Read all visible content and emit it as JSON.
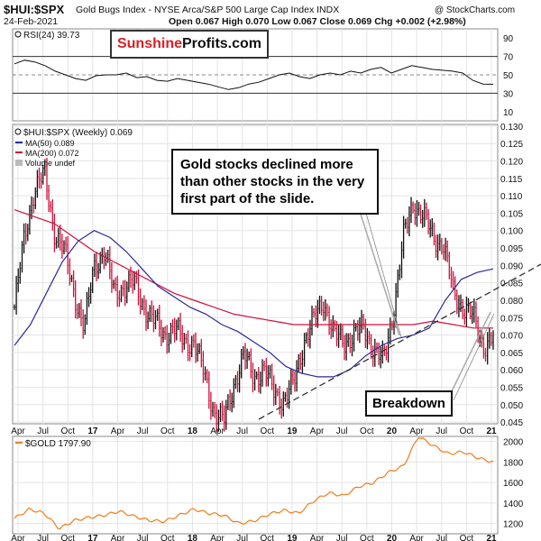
{
  "header": {
    "symbol": "$HUI:$SPX",
    "title": "Gold Bugs Index - NYSE Arca/S&P 500 Large Cap Index INDX",
    "watermark": "@ StockCharts.com",
    "date": "24-Feb-2021",
    "quote": "Open 0.067  High 0.070  Low 0.067  Close 0.069  Chg +0.002 (+2.98%)"
  },
  "logo": {
    "part1": "Sunshine",
    "part2": "Profits.com"
  },
  "annotations": {
    "main": "Gold stocks declined more than other stocks in the very first part of the slide.",
    "breakdown": "Breakdown"
  },
  "legends": {
    "rsi": "RSI(24) 39.73",
    "main": "$HUI:$SPX (Weekly) 0.069",
    "ma50": "MA(50) 0.089",
    "ma200": "MA(200) 0.072",
    "volume": "Volume undef",
    "gold": "$GOLD 1797.90"
  },
  "colors": {
    "up_bar": "#111111",
    "down_bar": "#d0103a",
    "ma50": "#2b2b9a",
    "ma200": "#d0103a",
    "gold": "#f07d1a",
    "trendline": "#333333",
    "callout": "#aaaaaa",
    "grid": "#e4e4e4"
  },
  "chart_data": [
    {
      "type": "line",
      "title": "RSI(24)",
      "x_ticks": [
        "Apr",
        "Jul",
        "Oct",
        "17",
        "Apr",
        "Jul",
        "Oct",
        "18",
        "Apr",
        "Jul",
        "Oct",
        "19",
        "Apr",
        "Jul",
        "Oct",
        "20",
        "Apr",
        "Jul",
        "Oct",
        "21"
      ],
      "ylim": [
        0,
        100
      ],
      "y_ticks": [
        10,
        30,
        50,
        70,
        90
      ],
      "reference_lines": [
        30,
        50,
        70
      ],
      "series": [
        {
          "name": "RSI(24)",
          "values": [
            62,
            66,
            64,
            60,
            54,
            50,
            46,
            44,
            49,
            50,
            50,
            52,
            47,
            48,
            44,
            43,
            46,
            44,
            42,
            40,
            37,
            34,
            36,
            40,
            42,
            46,
            50,
            52,
            48,
            46,
            50,
            52,
            50,
            54,
            52,
            56,
            58,
            52,
            56,
            60,
            58,
            56,
            55,
            54,
            52,
            44,
            40,
            39.73
          ]
        }
      ]
    },
    {
      "type": "line",
      "title": "$HUI:$SPX (Weekly)",
      "x_ticks": [
        "Apr",
        "Jul",
        "Oct",
        "17",
        "Apr",
        "Jul",
        "Oct",
        "18",
        "Apr",
        "Jul",
        "Oct",
        "19",
        "Apr",
        "Jul",
        "Oct",
        "20",
        "Apr",
        "Jul",
        "Oct",
        "21"
      ],
      "ylim": [
        0.0445,
        0.1305
      ],
      "y_ticks": [
        0.045,
        0.05,
        0.055,
        0.06,
        0.065,
        0.07,
        0.075,
        0.08,
        0.085,
        0.09,
        0.095,
        0.1,
        0.105,
        0.11,
        0.115,
        0.12,
        0.125,
        0.13
      ],
      "series": [
        {
          "name": "$HUI:$SPX",
          "values": [
            0.078,
            0.098,
            0.112,
            0.116,
            0.1,
            0.094,
            0.082,
            0.072,
            0.09,
            0.094,
            0.082,
            0.084,
            0.085,
            0.078,
            0.074,
            0.07,
            0.072,
            0.068,
            0.068,
            0.059,
            0.048,
            0.045,
            0.056,
            0.064,
            0.058,
            0.06,
            0.054,
            0.051,
            0.056,
            0.068,
            0.074,
            0.08,
            0.07,
            0.068,
            0.07,
            0.072,
            0.066,
            0.062,
            0.077,
            0.098,
            0.108,
            0.104,
            0.098,
            0.096,
            0.082,
            0.078,
            0.075,
            0.067,
            0.069
          ]
        },
        {
          "name": "MA(50)",
          "values": [
            0.067,
            0.073,
            0.082,
            0.091,
            0.097,
            0.1,
            0.098,
            0.094,
            0.089,
            0.084,
            0.081,
            0.078,
            0.076,
            0.073,
            0.071,
            0.068,
            0.065,
            0.061,
            0.059,
            0.058,
            0.058,
            0.06,
            0.064,
            0.067,
            0.069,
            0.07,
            0.072,
            0.08,
            0.086,
            0.088,
            0.089
          ]
        },
        {
          "name": "MA(200)",
          "values": [
            0.106,
            0.104,
            0.102,
            0.098,
            0.094,
            0.091,
            0.088,
            0.085,
            0.082,
            0.08,
            0.078,
            0.076,
            0.075,
            0.074,
            0.073,
            0.073,
            0.073,
            0.073,
            0.073,
            0.073,
            0.073,
            0.074,
            0.073,
            0.072,
            0.072
          ]
        }
      ],
      "annotations": [
        "Gold stocks declined more than other stocks in the very first part of the slide.",
        "Breakdown"
      ]
    },
    {
      "type": "line",
      "title": "$GOLD",
      "x_ticks": [
        "Apr",
        "Jul",
        "Oct",
        "17",
        "Apr",
        "Jul",
        "Oct",
        "18",
        "Apr",
        "Jul",
        "Oct",
        "19",
        "Apr",
        "Jul",
        "Oct",
        "20",
        "Apr",
        "Jul",
        "Oct",
        "21"
      ],
      "ylim": [
        1100,
        2050
      ],
      "y_ticks": [
        1200,
        1400,
        1600,
        1800,
        2000
      ],
      "series": [
        {
          "name": "$GOLD",
          "values": [
            1250,
            1340,
            1300,
            1150,
            1230,
            1260,
            1280,
            1320,
            1270,
            1230,
            1220,
            1280,
            1340,
            1300,
            1280,
            1200,
            1225,
            1290,
            1330,
            1300,
            1420,
            1500,
            1470,
            1560,
            1600,
            1700,
            1760,
            2050,
            1960,
            1880,
            1900,
            1840,
            1798
          ]
        }
      ]
    }
  ]
}
